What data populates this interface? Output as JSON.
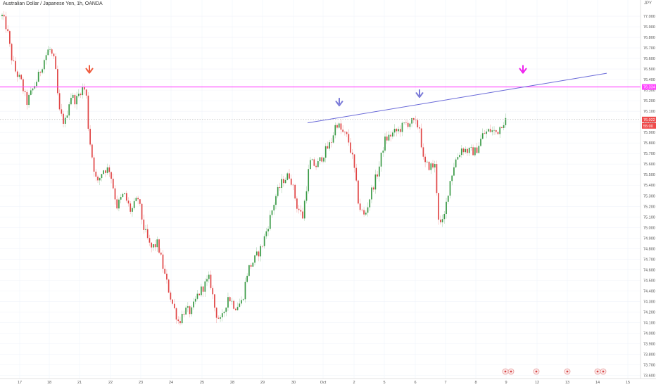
{
  "title": "Australian Dollar / Japanese Yen, 1h, OANDA",
  "currency": "JPY",
  "colors": {
    "up": "#3a9a46",
    "down": "#e04545",
    "resistance": "#ff44ff",
    "trendline": "#6a6ad8",
    "arrow_red": "#ef5a3c",
    "arrow_blue": "#7b7bd8",
    "arrow_magenta": "#ee22ee",
    "current_price_bg": "#ef4b4b"
  },
  "chart_data": {
    "type": "candlestick",
    "symbol": "AUDJPY",
    "timeframe": "1h",
    "y_range": [
      73.55,
      77.12
    ],
    "y_ticks": [
      "77.000",
      "76.900",
      "76.800",
      "76.700",
      "76.600",
      "76.500",
      "76.400",
      "76.300",
      "76.200",
      "76.100",
      "76.000",
      "75.900",
      "75.800",
      "75.700",
      "75.600",
      "75.500",
      "75.400",
      "75.300",
      "75.200",
      "75.100",
      "75.000",
      "74.900",
      "74.800",
      "74.700",
      "74.600",
      "74.500",
      "74.400",
      "74.300",
      "74.200",
      "74.100",
      "74.000",
      "73.900",
      "73.800",
      "73.700",
      "73.600"
    ],
    "x_labels": [
      "17",
      "18",
      "21",
      "22",
      "23",
      "24",
      "25",
      "28",
      "29",
      "30",
      "Oct",
      "2",
      "5",
      "6",
      "7",
      "8",
      "9",
      "12",
      "13",
      "14",
      "15"
    ],
    "x_label_centers": [
      28,
      70,
      113,
      157,
      200,
      243,
      287,
      330,
      373,
      417,
      459,
      503,
      546,
      590,
      633,
      676,
      719,
      763,
      806,
      849,
      892
    ],
    "resistance_level": 76.33,
    "resistance_label": "76.334",
    "current_price": 76.022,
    "current_price_label": "76.022",
    "countdown_label": "55:00",
    "trendline": {
      "x_from": 437,
      "x_to": 862,
      "y_from": 75.99,
      "y_to": 76.46
    },
    "path": [
      [
        3,
        77.0
      ],
      [
        10,
        76.88
      ],
      [
        16,
        76.62
      ],
      [
        22,
        76.48
      ],
      [
        30,
        76.38
      ],
      [
        38,
        76.18
      ],
      [
        46,
        76.3
      ],
      [
        54,
        76.42
      ],
      [
        62,
        76.58
      ],
      [
        70,
        76.7
      ],
      [
        78,
        76.55
      ],
      [
        84,
        76.1
      ],
      [
        92,
        75.98
      ],
      [
        100,
        76.25
      ],
      [
        108,
        76.2
      ],
      [
        116,
        76.32
      ],
      [
        122,
        76.3
      ],
      [
        126,
        75.9
      ],
      [
        132,
        75.62
      ],
      [
        138,
        75.4
      ],
      [
        146,
        75.55
      ],
      [
        156,
        75.55
      ],
      [
        166,
        75.2
      ],
      [
        176,
        75.32
      ],
      [
        186,
        75.15
      ],
      [
        196,
        75.28
      ],
      [
        204,
        75.0
      ],
      [
        214,
        74.8
      ],
      [
        224,
        74.85
      ],
      [
        234,
        74.55
      ],
      [
        244,
        74.3
      ],
      [
        254,
        74.1
      ],
      [
        262,
        74.22
      ],
      [
        272,
        74.2
      ],
      [
        280,
        74.35
      ],
      [
        290,
        74.45
      ],
      [
        298,
        74.52
      ],
      [
        306,
        74.2
      ],
      [
        314,
        74.1
      ],
      [
        324,
        74.35
      ],
      [
        334,
        74.25
      ],
      [
        344,
        74.3
      ],
      [
        352,
        74.6
      ],
      [
        362,
        74.7
      ],
      [
        372,
        74.82
      ],
      [
        382,
        75.05
      ],
      [
        392,
        75.3
      ],
      [
        402,
        75.45
      ],
      [
        412,
        75.5
      ],
      [
        422,
        75.2
      ],
      [
        430,
        75.1
      ],
      [
        440,
        75.62
      ],
      [
        450,
        75.58
      ],
      [
        460,
        75.7
      ],
      [
        470,
        75.8
      ],
      [
        478,
        76.0
      ],
      [
        486,
        75.9
      ],
      [
        494,
        75.85
      ],
      [
        502,
        75.62
      ],
      [
        510,
        75.2
      ],
      [
        518,
        75.1
      ],
      [
        528,
        75.35
      ],
      [
        538,
        75.55
      ],
      [
        546,
        75.82
      ],
      [
        556,
        75.88
      ],
      [
        566,
        75.92
      ],
      [
        576,
        75.98
      ],
      [
        584,
        76.0
      ],
      [
        590,
        75.98
      ],
      [
        596,
        75.95
      ],
      [
        602,
        75.6
      ],
      [
        610,
        75.58
      ],
      [
        618,
        75.58
      ],
      [
        624,
        75.02
      ],
      [
        630,
        75.05
      ],
      [
        638,
        75.4
      ],
      [
        646,
        75.62
      ],
      [
        656,
        75.75
      ],
      [
        666,
        75.72
      ],
      [
        676,
        75.72
      ],
      [
        686,
        75.88
      ],
      [
        696,
        75.92
      ],
      [
        706,
        75.9
      ],
      [
        714,
        76.0
      ],
      [
        720,
        76.02
      ]
    ],
    "candle_width": 1.7,
    "candle_step": 2.72,
    "events_x": [
      718,
      726,
      762,
      806,
      849,
      857
    ],
    "markers": [
      {
        "type": "arrow-down",
        "x": 127,
        "price": 76.47,
        "color": "red"
      },
      {
        "type": "arrow-down",
        "x": 482,
        "price": 76.16,
        "color": "blue"
      },
      {
        "type": "arrow-down",
        "x": 596,
        "price": 76.24,
        "color": "blue"
      },
      {
        "type": "arrow-down",
        "x": 743,
        "price": 76.47,
        "color": "magenta"
      }
    ]
  }
}
